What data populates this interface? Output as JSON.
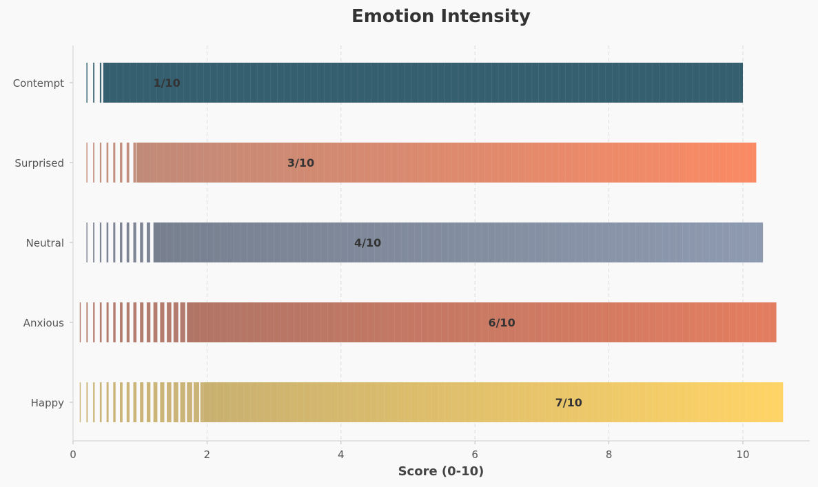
{
  "chart_data": {
    "type": "bar",
    "orientation": "horizontal",
    "title": "Emotion Intensity",
    "xlabel": "Score (0-10)",
    "ylabel": "",
    "xlim": [
      0,
      11
    ],
    "xticks": [
      "0",
      "2",
      "4",
      "6",
      "8",
      "10"
    ],
    "grid": "x-dashed",
    "categories": [
      "Contempt",
      "Surprised",
      "Neutral",
      "Anxious",
      "Happy"
    ],
    "values": [
      1,
      3,
      4,
      6,
      7
    ],
    "value_labels": [
      "1/10",
      "3/10",
      "4/10",
      "6/10",
      "7/10"
    ],
    "bar_extent": [
      10.0,
      10.2,
      10.3,
      10.5,
      10.6
    ],
    "colors": {
      "Contempt": [
        "#355e6e",
        "#355e6e"
      ],
      "Surprised": [
        "#c08a78",
        "#fa8a64"
      ],
      "Neutral": [
        "#77808f",
        "#8e9ab0"
      ],
      "Anxious": [
        "#b07566",
        "#e37d60"
      ],
      "Happy": [
        "#c8b070",
        "#ffd466"
      ]
    }
  }
}
